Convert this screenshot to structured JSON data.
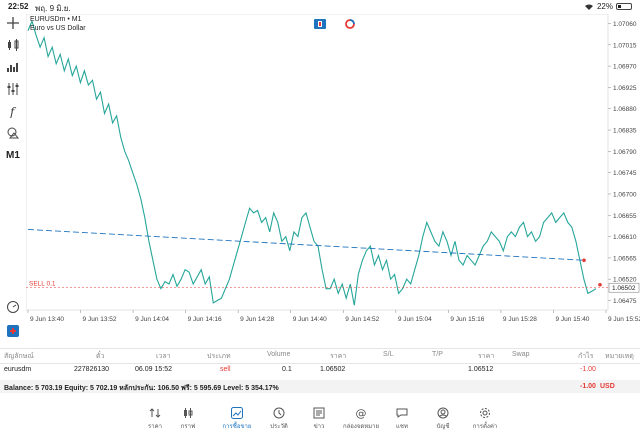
{
  "status_bar": {
    "time": "22:52",
    "date": "พฤ. 9 มิ.ย.",
    "battery": "22%"
  },
  "symbol": {
    "name": "EURUSDm",
    "timeframe_suffix": "• M1",
    "description": "Euro vs US Dollar"
  },
  "toolbar": {
    "timeframe": "M1"
  },
  "chart_data": {
    "type": "line",
    "symbol": "EURUSDm",
    "timeframe": "M1",
    "y_ticks": [
      "1.07060",
      "1.07015",
      "1.06970",
      "1.06925",
      "1.06880",
      "1.06835",
      "1.06790",
      "1.06745",
      "1.06700",
      "1.06655",
      "1.06610",
      "1.06565",
      "1.06520",
      "1.06475"
    ],
    "ylim": [
      1.06455,
      1.0708
    ],
    "x_ticks": [
      "9 Jun 13:40",
      "9 Jun 13:52",
      "9 Jun 14:04",
      "9 Jun 14:16",
      "9 Jun 14:28",
      "9 Jun 14:40",
      "9 Jun 14:52",
      "9 Jun 15:04",
      "9 Jun 15:16",
      "9 Jun 15:28",
      "9 Jun 15:40",
      "9 Jun 15:52"
    ],
    "price_series": [
      1.07045,
      1.07065,
      1.07035,
      1.0701,
      1.0703,
      1.0699,
      1.0701,
      1.06975,
      1.06995,
      1.0696,
      1.06985,
      1.0695,
      1.0697,
      1.06935,
      1.0696,
      1.0693,
      1.0694,
      1.069,
      1.06915,
      1.0687,
      1.0689,
      1.0685,
      1.06865,
      1.0682,
      1.0679,
      1.0677,
      1.06745,
      1.0672,
      1.0669,
      1.0665,
      1.066,
      1.0656,
      1.0652,
      1.065,
      1.06515,
      1.0651,
      1.0653,
      1.06505,
      1.0652,
      1.0654,
      1.06535,
      1.0651,
      1.06525,
      1.0654,
      1.0651,
      1.06525,
      1.0647,
      1.06475,
      1.0648,
      1.065,
      1.0652,
      1.0655,
      1.0658,
      1.0661,
      1.0664,
      1.0667,
      1.0666,
      1.06665,
      1.0664,
      1.0665,
      1.0662,
      1.0666,
      1.0664,
      1.066,
      1.0661,
      1.0658,
      1.0662,
      1.0661,
      1.0665,
      1.0666,
      1.0663,
      1.066,
      1.0659,
      1.0654,
      1.065,
      1.065,
      1.0652,
      1.0649,
      1.0651,
      1.0648,
      1.0651,
      1.06465,
      1.0653,
      1.0656,
      1.0658,
      1.0659,
      1.0655,
      1.0657,
      1.0654,
      1.0656,
      1.0652,
      1.0653,
      1.0649,
      1.065,
      1.0652,
      1.0651,
      1.0654,
      1.0657,
      1.0661,
      1.0664,
      1.0662,
      1.066,
      1.0659,
      1.0662,
      1.066,
      1.0657,
      1.066,
      1.0656,
      1.0655,
      1.0657,
      1.0656,
      1.0655,
      1.0657,
      1.0659,
      1.066,
      1.0662,
      1.0661,
      1.066,
      1.0658,
      1.0661,
      1.0662,
      1.0661,
      1.0663,
      1.0664,
      1.0661,
      1.0662,
      1.066,
      1.0661,
      1.0664,
      1.0665,
      1.0666,
      1.0664,
      1.0665,
      1.0666,
      1.0664,
      1.0663,
      1.066,
      1.0656,
      1.0652,
      1.0649,
      1.06495,
      1.065
    ],
    "trend_line": {
      "start": 1.06625,
      "end": 1.0656
    },
    "sell_line": {
      "label": "SELL 0.1",
      "price": 1.06502
    },
    "current_price": "1.06502",
    "line_color": "#26a69a",
    "trend_color": "#1e73be",
    "sell_color": "#e53935"
  },
  "table": {
    "headers": [
      "สัญลักษณ์",
      "ตั๋ว",
      "เวลา",
      "ประเภท",
      "Volume",
      "ราคา",
      "S/L",
      "T/P",
      "ราคา",
      "Swap",
      "กำไร",
      "หมายเหตุ"
    ],
    "row": {
      "symbol": "eurusdm",
      "ticket": "227826130",
      "time": "06.09 15:52",
      "type": "sell",
      "volume": "0.1",
      "price": "1.06502",
      "current_price": "1.06512",
      "profit": "-1.00",
      "profit_currency": "USD"
    }
  },
  "balance_line": "Balance: 5 703.19 Equity: 5 702.19 หลักประกัน: 106.50 ฟรี: 5 595.69 Level: 5 354.17%",
  "balance_profit": "-1.00",
  "currency": "USD",
  "nav": [
    {
      "label": "ราคา",
      "icon": "quotes-icon"
    },
    {
      "label": "กราฟ",
      "icon": "chart-icon"
    },
    {
      "label": "การซื้อขาย",
      "icon": "trade-icon",
      "active": true
    },
    {
      "label": "ประวัติ",
      "icon": "history-icon"
    },
    {
      "label": "ข่าว",
      "icon": "news-icon"
    },
    {
      "label": "กล่องจดหมาย",
      "icon": "mail-icon"
    },
    {
      "label": "แชท",
      "icon": "chat-icon"
    },
    {
      "label": "บัญชี",
      "icon": "account-icon"
    },
    {
      "label": "การตั้งค่า",
      "icon": "settings-icon"
    }
  ]
}
